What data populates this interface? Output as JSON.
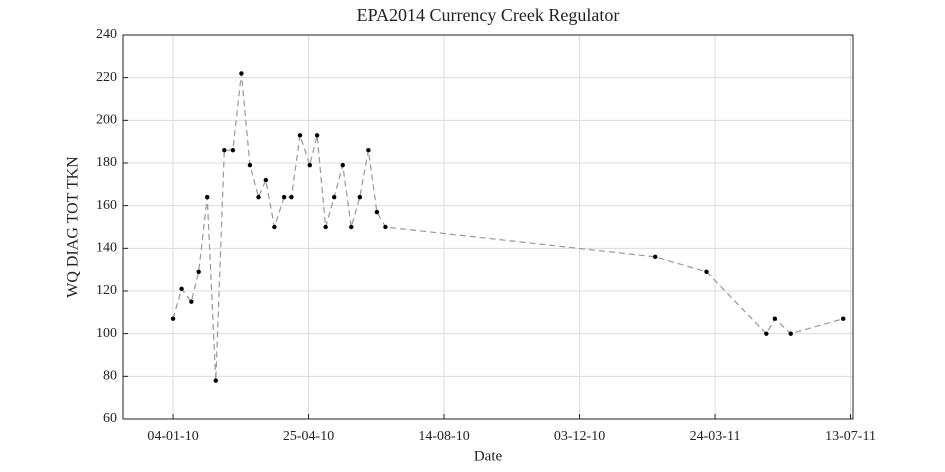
{
  "chart_data": {
    "type": "line",
    "title": "EPA2014 Currency Creek Regulator",
    "xlabel": "Date",
    "ylabel": "WQ DIAG TOT TKN",
    "x": [
      "2010-01-04",
      "2010-01-11",
      "2010-01-19",
      "2010-01-25",
      "2010-02-01",
      "2010-02-08",
      "2010-02-15",
      "2010-02-22",
      "2010-03-01",
      "2010-03-08",
      "2010-03-15",
      "2010-03-21",
      "2010-03-28",
      "2010-04-05",
      "2010-04-11",
      "2010-04-18",
      "2010-04-26",
      "2010-05-02",
      "2010-05-09",
      "2010-05-16",
      "2010-05-23",
      "2010-05-30",
      "2010-06-06",
      "2010-06-13",
      "2010-06-20",
      "2010-06-27",
      "2011-02-03",
      "2011-03-17",
      "2011-05-05",
      "2011-05-12",
      "2011-05-25",
      "2011-07-07"
    ],
    "series": [
      {
        "color": "#999999",
        "values": [
          107,
          121,
          115,
          129,
          164,
          78,
          186,
          186,
          222,
          179,
          164,
          172,
          150,
          164,
          164,
          193,
          179,
          193,
          150,
          164,
          179,
          150,
          164,
          186,
          157,
          150,
          136,
          129,
          100,
          107,
          100,
          107
        ]
      }
    ],
    "xlim": [
      "2009-11-24",
      "2011-07-15"
    ],
    "xticks": [
      {
        "value": "2010-01-04",
        "label": "04-01-10"
      },
      {
        "value": "2010-04-25",
        "label": "25-04-10"
      },
      {
        "value": "2010-08-14",
        "label": "14-08-10"
      },
      {
        "value": "2010-12-03",
        "label": "03-12-10"
      },
      {
        "value": "2011-03-24",
        "label": "24-03-11"
      },
      {
        "value": "2011-07-13",
        "label": "13-07-11"
      }
    ],
    "ylim": [
      60,
      240
    ],
    "yticks": [
      60,
      80,
      100,
      120,
      140,
      160,
      180,
      200,
      220,
      240
    ],
    "grid": true
  }
}
